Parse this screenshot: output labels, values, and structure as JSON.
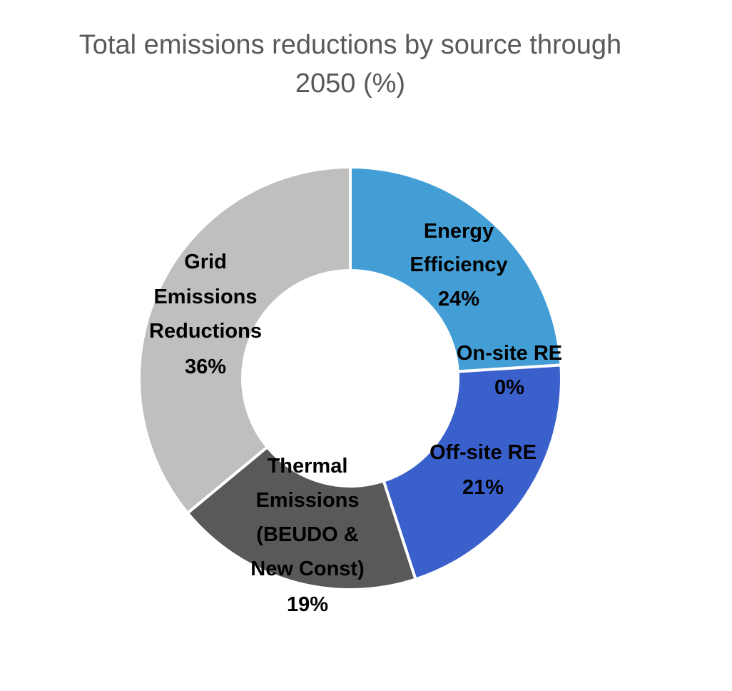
{
  "chart_data": {
    "type": "pie",
    "variant": "donut",
    "title": "Total emissions reductions by source through 2050 (%)",
    "title_lines": [
      "Total emissions reductions by source through",
      "2050 (%)"
    ],
    "categories": [
      "Energy Efficiency",
      "On-site RE",
      "Off-site RE",
      "Thermal Emissions (BEUDO & New Const)",
      "Grid Emissions Reductions"
    ],
    "values": [
      24,
      0,
      21,
      19,
      36
    ],
    "unit": "%",
    "colors": [
      "#449ED6",
      "#449ED6",
      "#3A60CC",
      "#595959",
      "#BFBFBF"
    ],
    "labels": [
      {
        "lines": [
          "Energy",
          "Efficiency",
          "24%"
        ]
      },
      {
        "lines": [
          "On-site RE",
          "0%"
        ]
      },
      {
        "lines": [
          "Off-site RE",
          "21%"
        ]
      },
      {
        "lines": [
          "Thermal",
          "Emissions",
          "(BEUDO &",
          "New Const)",
          "19%"
        ]
      },
      {
        "lines": [
          "Grid",
          "Emissions",
          "Reductions",
          "36%"
        ]
      }
    ],
    "legend": "none (data labels on slices)"
  }
}
